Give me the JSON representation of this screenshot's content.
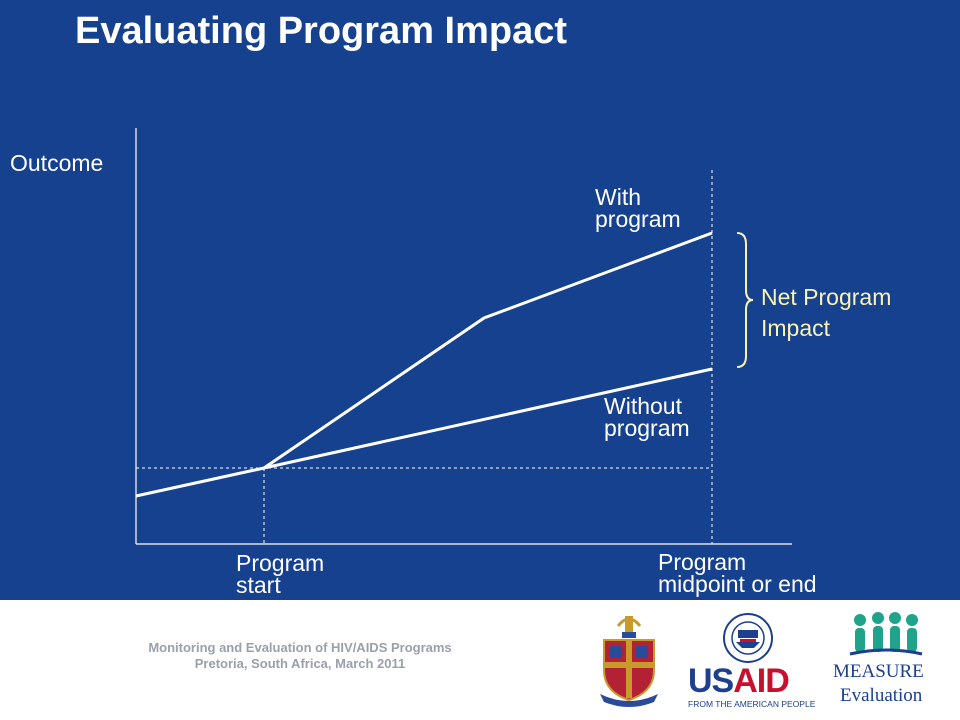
{
  "slide": {
    "title": "Evaluating Program Impact",
    "background_color": "#16418f"
  },
  "diagram": {
    "y_axis_label": "Outcome",
    "x_labels": {
      "start": [
        "Program",
        "start"
      ],
      "end": [
        "Program",
        "midpoint or end"
      ]
    },
    "lines": {
      "with_program": [
        "With",
        "program"
      ],
      "without_program": [
        "Without",
        "program"
      ]
    },
    "bracket_label": [
      "Net Program",
      "Impact"
    ],
    "bracket_color": "#fbf3b4"
  },
  "footer": {
    "lines": [
      "Monitoring and Evaluation of HIV/AIDS Programs",
      "Pretoria, South Africa, March  2011"
    ],
    "logos": {
      "crest": "university-crest-icon",
      "usaid": {
        "wordmark_left": "US",
        "wordmark_right": "AID",
        "tagline": "FROM THE AMERICAN PEOPLE"
      },
      "measure": {
        "name": "MEASURE",
        "sub": "Evaluation"
      }
    }
  }
}
